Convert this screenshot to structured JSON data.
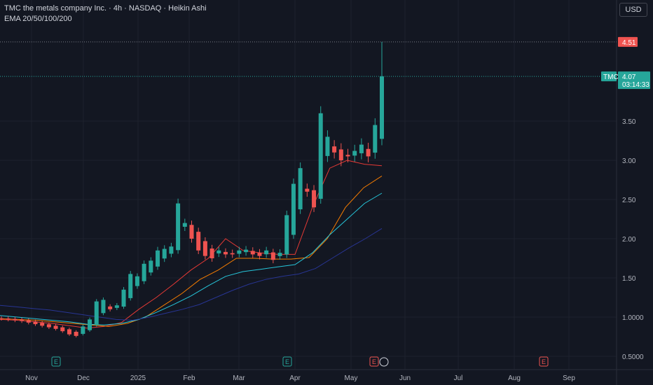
{
  "header": {
    "title": "TMC the metals company Inc. · 4h · NASDAQ · Heikin Ashi",
    "indicator": "EMA 20/50/100/200"
  },
  "currency_button": "USD",
  "colors": {
    "background": "#131722",
    "up": "#26a69a",
    "down": "#ef5350",
    "ema20": "#e53935",
    "ema50": "#f57c00",
    "ema100": "#26c6da",
    "ema200": "#283593",
    "earnings_green": "#26a69a",
    "earnings_red": "#ef5350"
  },
  "price_tags": {
    "high_value": "4.51",
    "symbol": "TMC",
    "last_value": "4.07",
    "countdown": "03:14:33"
  },
  "event_markers": [
    {
      "label": "E",
      "month": "Nov",
      "type": "earnings",
      "color": "green"
    },
    {
      "label": "E",
      "month": "Apr",
      "type": "earnings",
      "color": "green"
    },
    {
      "label": "E",
      "month": "May",
      "type": "earnings",
      "color": "red"
    },
    {
      "label": "E",
      "month": "Aug",
      "type": "earnings",
      "color": "red"
    }
  ],
  "chart_data": {
    "type": "candlestick",
    "style": "Heikin Ashi",
    "timeframe": "4h",
    "x_ticks": [
      "Nov",
      "Dec",
      "2025",
      "Feb",
      "Mar",
      "Apr",
      "May",
      "Jun",
      "Jul",
      "Aug",
      "Sep"
    ],
    "y_ticks": [
      "3.50",
      "3.00",
      "2.50",
      "2.00",
      "1.50",
      "1.0000",
      "0.5000"
    ],
    "ylim": [
      0.45,
      4.75
    ],
    "grid": true,
    "candles_approx_close": [
      0.98,
      0.97,
      0.96,
      0.95,
      0.93,
      0.91,
      0.89,
      0.87,
      0.85,
      0.82,
      0.78,
      0.76,
      0.88,
      0.97,
      1.2,
      1.22,
      1.1,
      1.15,
      1.35,
      1.55,
      1.52,
      1.68,
      1.72,
      1.85,
      1.87,
      1.9,
      2.45,
      2.2,
      2.0,
      1.85,
      1.78,
      1.75,
      1.85,
      1.8,
      1.8,
      1.85,
      1.86,
      1.8,
      1.78,
      1.85,
      1.73,
      1.82,
      2.3,
      2.7,
      2.9,
      2.6,
      2.4,
      3.6,
      3.3,
      3.1,
      3.0,
      3.05,
      3.12,
      3.2,
      3.05,
      3.45,
      4.07
    ],
    "last_price": 4.07,
    "high_price": 4.51,
    "series": [
      {
        "name": "EMA 20",
        "values": [
          0.97,
          0.96,
          0.94,
          0.92,
          0.89,
          0.86,
          0.88,
          0.93,
          1.1,
          1.25,
          1.42,
          1.6,
          1.75,
          2.0,
          1.85,
          1.82,
          1.8,
          1.8,
          2.4,
          2.9,
          3.0,
          2.95,
          2.93
        ]
      },
      {
        "name": "EMA 50",
        "values": [
          0.98,
          0.97,
          0.96,
          0.94,
          0.92,
          0.9,
          0.88,
          0.92,
          1.0,
          1.15,
          1.3,
          1.48,
          1.6,
          1.75,
          1.75,
          1.74,
          1.74,
          1.76,
          2.0,
          2.4,
          2.65,
          2.8
        ]
      },
      {
        "name": "EMA 100",
        "values": [
          1.02,
          1.0,
          0.98,
          0.96,
          0.94,
          0.91,
          0.9,
          0.92,
          0.97,
          1.06,
          1.16,
          1.27,
          1.4,
          1.52,
          1.58,
          1.61,
          1.64,
          1.67,
          1.82,
          2.05,
          2.25,
          2.45,
          2.58
        ]
      },
      {
        "name": "EMA 200",
        "values": [
          1.15,
          1.13,
          1.11,
          1.09,
          1.06,
          1.03,
          1.0,
          0.97,
          0.96,
          1.0,
          1.05,
          1.1,
          1.16,
          1.25,
          1.34,
          1.42,
          1.48,
          1.52,
          1.55,
          1.62,
          1.75,
          1.88,
          2.0,
          2.13
        ]
      }
    ]
  }
}
